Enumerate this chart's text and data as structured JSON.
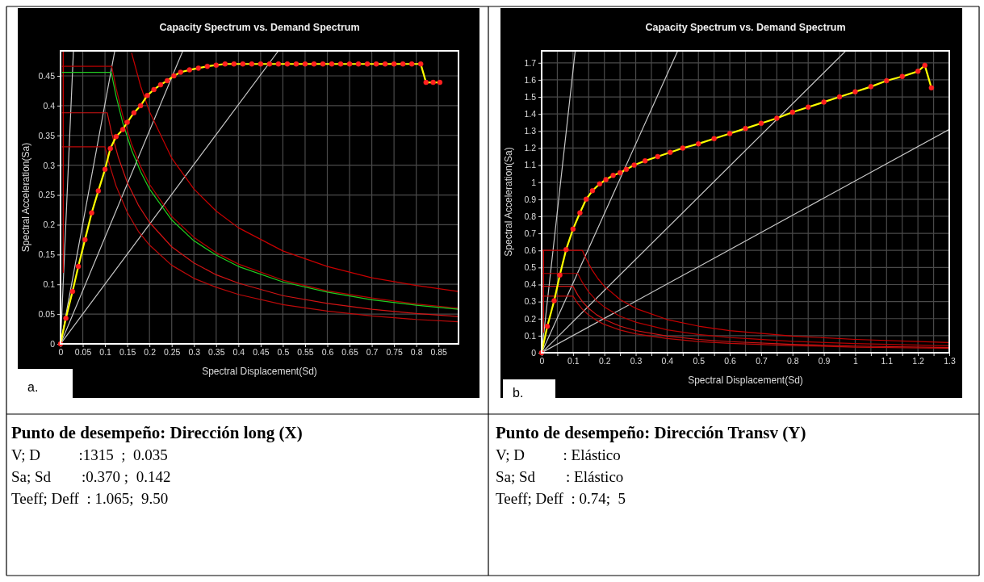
{
  "chart_data": [
    {
      "type": "line",
      "title": "Capacity Spectrum vs. Demand Spectrum",
      "xlabel": "Spectral Displacement(Sd)",
      "ylabel": "Spectral Acceleration(Sa)",
      "xlim": [
        0,
        0.895
      ],
      "ylim": [
        0,
        0.492
      ],
      "xticks": [
        0,
        0.05,
        0.1,
        0.15,
        0.2,
        0.25,
        0.3,
        0.35,
        0.4,
        0.45,
        0.5,
        0.55,
        0.6,
        0.65,
        0.7,
        0.75,
        0.8,
        0.85
      ],
      "yticks": [
        0,
        0.05,
        0.1,
        0.15,
        0.2,
        0.25,
        0.3,
        0.35,
        0.4,
        0.45
      ],
      "grid": true,
      "series": [
        {
          "type": "line",
          "color": "#c8c8c8",
          "x": [
            0,
            0.029
          ],
          "values": [
            0,
            0.492
          ]
        },
        {
          "type": "line",
          "color": "#c8c8c8",
          "x": [
            0,
            0.122
          ],
          "values": [
            0,
            0.492
          ]
        },
        {
          "type": "line",
          "color": "#c8c8c8",
          "x": [
            0,
            0.275
          ],
          "values": [
            0,
            0.492
          ]
        },
        {
          "type": "line",
          "color": "#c8c8c8",
          "x": [
            0,
            0.49
          ],
          "values": [
            0,
            0.492
          ]
        },
        {
          "type": "line",
          "color": "#dd0000",
          "x": [
            0.006,
            0.006
          ],
          "values": [
            0.12,
            0.492
          ]
        },
        {
          "type": "line",
          "color": "#c80000",
          "x": [
            0.16,
            0.18,
            0.2,
            0.25,
            0.3,
            0.35,
            0.4,
            0.5,
            0.6,
            0.7,
            0.8,
            0.895
          ],
          "values": [
            0.488,
            0.433,
            0.39,
            0.312,
            0.26,
            0.223,
            0.195,
            0.156,
            0.13,
            0.111,
            0.098,
            0.088
          ]
        },
        {
          "type": "line",
          "color": "#b40000",
          "x": [
            0.004,
            0.115,
            0.125,
            0.14,
            0.16,
            0.18,
            0.2,
            0.25,
            0.3,
            0.35,
            0.4,
            0.5,
            0.6,
            0.7,
            0.8,
            0.895
          ],
          "values": [
            0.466,
            0.466,
            0.429,
            0.383,
            0.335,
            0.298,
            0.268,
            0.214,
            0.179,
            0.153,
            0.134,
            0.107,
            0.089,
            0.077,
            0.067,
            0.06
          ]
        },
        {
          "type": "line",
          "color": "#d21414",
          "x": [
            0.004,
            0.105,
            0.115,
            0.13,
            0.15,
            0.175,
            0.2,
            0.25,
            0.3,
            0.35,
            0.4,
            0.5,
            0.6,
            0.7,
            0.8,
            0.895
          ],
          "values": [
            0.388,
            0.388,
            0.354,
            0.313,
            0.271,
            0.233,
            0.204,
            0.163,
            0.136,
            0.116,
            0.102,
            0.081,
            0.068,
            0.058,
            0.051,
            0.046
          ]
        },
        {
          "type": "line",
          "color": "#bc0a0a",
          "x": [
            0.004,
            0.1,
            0.11,
            0.125,
            0.15,
            0.175,
            0.2,
            0.25,
            0.3,
            0.35,
            0.4,
            0.5,
            0.6,
            0.7,
            0.8,
            0.895
          ],
          "values": [
            0.331,
            0.331,
            0.301,
            0.265,
            0.221,
            0.189,
            0.166,
            0.132,
            0.11,
            0.095,
            0.083,
            0.066,
            0.055,
            0.047,
            0.041,
            0.037
          ]
        },
        {
          "type": "line",
          "color": "#22cc22",
          "x": [
            0.004,
            0.114,
            0.125,
            0.14,
            0.16,
            0.18,
            0.2,
            0.25,
            0.3,
            0.35,
            0.4,
            0.5,
            0.6,
            0.7,
            0.8,
            0.895
          ],
          "values": [
            0.456,
            0.456,
            0.416,
            0.371,
            0.325,
            0.289,
            0.26,
            0.208,
            0.173,
            0.149,
            0.13,
            0.104,
            0.087,
            0.074,
            0.065,
            0.058
          ]
        },
        {
          "type": "line",
          "color": "#ffff00",
          "x": [
            0,
            0.012,
            0.027,
            0.04,
            0.055,
            0.07,
            0.085,
            0.1,
            0.112,
            0.125,
            0.14,
            0.15,
            0.165,
            0.18,
            0.195,
            0.21,
            0.225,
            0.24,
            0.255,
            0.27,
            0.29,
            0.31,
            0.33,
            0.35,
            0.37,
            0.39,
            0.41,
            0.43,
            0.45,
            0.47,
            0.49,
            0.51,
            0.53,
            0.55,
            0.57,
            0.59,
            0.61,
            0.63,
            0.65,
            0.67,
            0.69,
            0.71,
            0.73,
            0.75,
            0.77,
            0.79,
            0.81,
            0.822,
            0.838,
            0.853
          ],
          "values": [
            0,
            0.043,
            0.088,
            0.13,
            0.175,
            0.22,
            0.257,
            0.293,
            0.328,
            0.348,
            0.36,
            0.372,
            0.388,
            0.4,
            0.417,
            0.427,
            0.435,
            0.442,
            0.45,
            0.456,
            0.46,
            0.463,
            0.466,
            0.468,
            0.47,
            0.47,
            0.47,
            0.47,
            0.47,
            0.47,
            0.47,
            0.47,
            0.47,
            0.47,
            0.47,
            0.47,
            0.47,
            0.47,
            0.47,
            0.47,
            0.47,
            0.47,
            0.47,
            0.47,
            0.47,
            0.47,
            0.47,
            0.439,
            0.439,
            0.439
          ]
        },
        {
          "type": "scatter",
          "color": "#ff2020",
          "x": [
            0,
            0.012,
            0.027,
            0.04,
            0.055,
            0.07,
            0.085,
            0.1,
            0.112,
            0.125,
            0.14,
            0.15,
            0.165,
            0.18,
            0.195,
            0.21,
            0.225,
            0.24,
            0.255,
            0.27,
            0.29,
            0.31,
            0.33,
            0.35,
            0.37,
            0.39,
            0.41,
            0.43,
            0.45,
            0.47,
            0.49,
            0.51,
            0.53,
            0.55,
            0.57,
            0.59,
            0.61,
            0.63,
            0.65,
            0.67,
            0.69,
            0.71,
            0.73,
            0.75,
            0.77,
            0.79,
            0.81,
            0.822,
            0.838,
            0.853
          ],
          "values": [
            0,
            0.043,
            0.088,
            0.13,
            0.175,
            0.22,
            0.257,
            0.293,
            0.328,
            0.348,
            0.36,
            0.372,
            0.388,
            0.4,
            0.417,
            0.427,
            0.435,
            0.442,
            0.45,
            0.456,
            0.46,
            0.463,
            0.466,
            0.468,
            0.47,
            0.47,
            0.47,
            0.47,
            0.47,
            0.47,
            0.47,
            0.47,
            0.47,
            0.47,
            0.47,
            0.47,
            0.47,
            0.47,
            0.47,
            0.47,
            0.47,
            0.47,
            0.47,
            0.47,
            0.47,
            0.47,
            0.47,
            0.439,
            0.439,
            0.439
          ]
        }
      ],
      "annotations": [
        "a.",
        "Punto de desempeño: Dirección long (X)",
        "V; D          :1315  ;  0.035",
        "Sa; Sd        :0.370 ;  0.142",
        "Teeff; Deff  : 1.065;  9.50"
      ]
    },
    {
      "type": "line",
      "title": "Capacity Spectrum vs. Demand Spectrum",
      "xlabel": "Spectral Displacement(Sd)",
      "ylabel": "Spectral Acceleration(Sa)",
      "xlim": [
        0,
        1.3
      ],
      "ylim": [
        0,
        1.77
      ],
      "xticks": [
        0,
        {
          "value": 0.05,
          "label": null
        },
        0.1,
        {
          "value": 0.15,
          "label": null
        },
        0.2,
        {
          "value": 0.25,
          "label": null
        },
        0.3,
        {
          "value": 0.35,
          "label": null
        },
        0.4,
        {
          "value": 0.45,
          "label": null
        },
        0.5,
        {
          "value": 0.55,
          "label": null
        },
        0.6,
        {
          "value": 0.65,
          "label": null
        },
        0.7,
        {
          "value": 0.75,
          "label": null
        },
        0.8,
        {
          "value": 0.85,
          "label": null
        },
        0.9,
        {
          "value": 0.95,
          "label": null
        },
        1,
        {
          "value": 1.05,
          "label": null
        },
        1.1,
        {
          "value": 1.15,
          "label": null
        },
        1.2,
        {
          "value": 1.25,
          "label": null
        },
        1.3
      ],
      "yticks": [
        0,
        0.1,
        0.2,
        0.3,
        0.4,
        0.5,
        0.6,
        0.7,
        0.8,
        0.9,
        1,
        1.1,
        1.2,
        1.3,
        1.4,
        1.5,
        1.6,
        1.7
      ],
      "grid": true,
      "series": [
        {
          "type": "line",
          "color": "#c8c8c8",
          "x": [
            0,
            0.107
          ],
          "values": [
            0,
            1.77
          ]
        },
        {
          "type": "line",
          "color": "#c8c8c8",
          "x": [
            0,
            0.434
          ],
          "values": [
            0,
            1.77
          ]
        },
        {
          "type": "line",
          "color": "#c8c8c8",
          "x": [
            0,
            0.97
          ],
          "values": [
            0,
            1.77
          ]
        },
        {
          "type": "line",
          "color": "#c8c8c8",
          "x": [
            0,
            1.3
          ],
          "values": [
            0,
            1.31
          ]
        },
        {
          "type": "line",
          "color": "#dd0000",
          "x": [
            0.006,
            0.006
          ],
          "values": [
            0.12,
            0.6
          ]
        },
        {
          "type": "line",
          "color": "#c80000",
          "x": [
            0.004,
            0.13,
            0.14,
            0.16,
            0.18,
            0.2,
            0.25,
            0.3,
            0.4,
            0.5,
            0.6,
            0.8,
            1,
            1.3
          ],
          "values": [
            0.6,
            0.6,
            0.557,
            0.488,
            0.433,
            0.39,
            0.312,
            0.26,
            0.195,
            0.156,
            0.13,
            0.098,
            0.078,
            0.06
          ]
        },
        {
          "type": "line",
          "color": "#b40000",
          "x": [
            0.004,
            0.115,
            0.13,
            0.15,
            0.175,
            0.2,
            0.25,
            0.3,
            0.4,
            0.5,
            0.6,
            0.8,
            1,
            1.3
          ],
          "values": [
            0.465,
            0.465,
            0.412,
            0.357,
            0.306,
            0.268,
            0.214,
            0.179,
            0.134,
            0.107,
            0.089,
            0.067,
            0.054,
            0.041
          ]
        },
        {
          "type": "line",
          "color": "#d21414",
          "x": [
            0.004,
            0.1,
            0.115,
            0.13,
            0.15,
            0.175,
            0.2,
            0.25,
            0.3,
            0.4,
            0.5,
            0.6,
            0.8,
            1,
            1.3
          ],
          "values": [
            0.39,
            0.39,
            0.339,
            0.3,
            0.26,
            0.223,
            0.195,
            0.156,
            0.13,
            0.098,
            0.078,
            0.065,
            0.049,
            0.039,
            0.03
          ]
        },
        {
          "type": "line",
          "color": "#bc0a0a",
          "x": [
            0.004,
            0.1,
            0.115,
            0.13,
            0.15,
            0.175,
            0.2,
            0.25,
            0.3,
            0.4,
            0.5,
            0.6,
            0.8,
            1,
            1.3
          ],
          "values": [
            0.332,
            0.332,
            0.289,
            0.255,
            0.221,
            0.19,
            0.166,
            0.133,
            0.111,
            0.083,
            0.066,
            0.055,
            0.042,
            0.033,
            0.026
          ]
        },
        {
          "type": "line",
          "color": "#ffff00",
          "x": [
            0,
            0.018,
            0.04,
            0.058,
            0.078,
            0.1,
            0.122,
            0.142,
            0.162,
            0.185,
            0.205,
            0.228,
            0.25,
            0.27,
            0.295,
            0.33,
            0.37,
            0.41,
            0.45,
            0.5,
            0.55,
            0.6,
            0.65,
            0.7,
            0.75,
            0.8,
            0.85,
            0.9,
            0.95,
            1,
            1.05,
            1.1,
            1.15,
            1.2,
            1.222,
            1.243
          ],
          "values": [
            0,
            0.155,
            0.305,
            0.455,
            0.605,
            0.725,
            0.82,
            0.9,
            0.95,
            0.99,
            1.015,
            1.04,
            1.055,
            1.075,
            1.1,
            1.125,
            1.15,
            1.175,
            1.2,
            1.225,
            1.255,
            1.285,
            1.315,
            1.345,
            1.375,
            1.41,
            1.44,
            1.47,
            1.5,
            1.53,
            1.56,
            1.595,
            1.62,
            1.65,
            1.685,
            1.553
          ]
        },
        {
          "type": "scatter",
          "color": "#ff2020",
          "x": [
            0,
            0.018,
            0.04,
            0.058,
            0.078,
            0.1,
            0.122,
            0.142,
            0.162,
            0.185,
            0.205,
            0.228,
            0.25,
            0.27,
            0.295,
            0.33,
            0.37,
            0.41,
            0.45,
            0.5,
            0.55,
            0.6,
            0.65,
            0.7,
            0.75,
            0.8,
            0.85,
            0.9,
            0.95,
            1,
            1.05,
            1.1,
            1.15,
            1.2,
            1.222,
            1.243
          ],
          "values": [
            0,
            0.155,
            0.305,
            0.455,
            0.605,
            0.725,
            0.82,
            0.9,
            0.95,
            0.99,
            1.015,
            1.04,
            1.055,
            1.075,
            1.1,
            1.125,
            1.15,
            1.175,
            1.2,
            1.225,
            1.255,
            1.285,
            1.315,
            1.345,
            1.375,
            1.41,
            1.44,
            1.47,
            1.5,
            1.53,
            1.56,
            1.595,
            1.62,
            1.65,
            1.685,
            1.553
          ]
        }
      ],
      "annotations": [
        "b.",
        "Punto de desempeño: Dirección Transv (Y)",
        "V; D          : Elástico",
        "Sa; Sd        : Elástico",
        "Teeff; Deff  : 0.74;  5"
      ]
    }
  ]
}
